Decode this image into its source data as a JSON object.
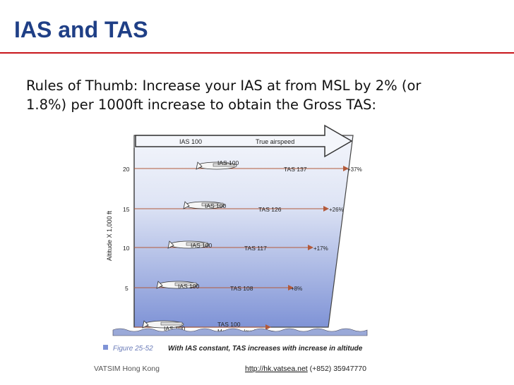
{
  "slide": {
    "title": "IAS and TAS",
    "body": "Rules of Thumb: Increase your IAS at from MSL by 2% (or\n1.8%) per 1000ft increase to obtain the Gross TAS:"
  },
  "figure": {
    "header_ias": "IAS 100",
    "header_tas": "True airspeed",
    "y_axis_label": "Altitude X 1,000 ft",
    "msl_label": "Mean sea level",
    "caption_prefix": "Figure 25-52",
    "caption_text": "With IAS constant, TAS increases with increase in altitude",
    "rows": [
      {
        "altitude": "20",
        "ias": "IAS 100",
        "tas": "TAS 137",
        "pct": "+37%"
      },
      {
        "altitude": "15",
        "ias": "IAS 100",
        "tas": "TAS 126",
        "pct": "+26%"
      },
      {
        "altitude": "10",
        "ias": "IAS 100",
        "tas": "TAS 117",
        "pct": "+17%"
      },
      {
        "altitude": "5",
        "ias": "IAS 100",
        "tas": "TAS 108",
        "pct": "+8%"
      },
      {
        "altitude": "",
        "ias": "IAS 100",
        "tas": "TAS 100",
        "pct": ""
      }
    ],
    "colors": {
      "sky_top": "#f3f5fb",
      "sky_bottom": "#7f93d6",
      "arrow": "#b35a3a",
      "water": "#9aa9d8"
    }
  },
  "footer": {
    "left": "VATSIM Hong Kong",
    "link": "http://hk.vatsea.net",
    "phone": " (+852) 35947770"
  }
}
